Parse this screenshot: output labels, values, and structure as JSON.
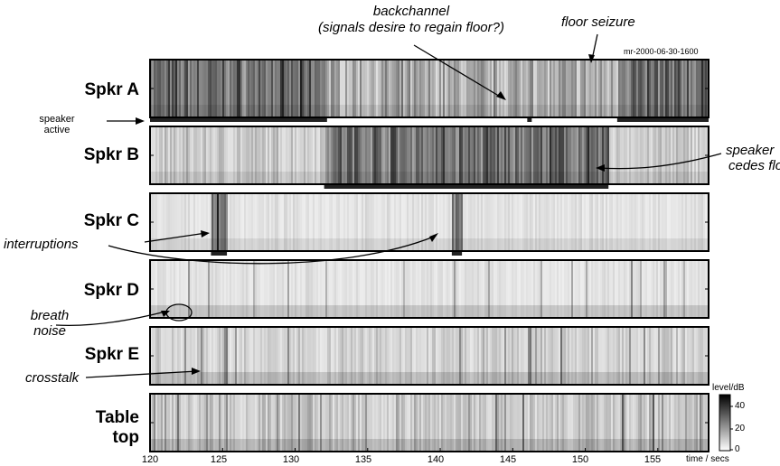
{
  "figure": {
    "recording_id": "mr-2000-06-30-1600",
    "axis_unit": "time / secs",
    "x_ticks": [
      "120",
      "125",
      "130",
      "135",
      "140",
      "145",
      "150",
      "155"
    ],
    "x_range": [
      120,
      158.5
    ]
  },
  "channels": [
    {
      "label": "Spkr A",
      "active_segments": [
        [
          120,
          132.2
        ],
        [
          146.0,
          146.3
        ],
        [
          152.2,
          158.5
        ]
      ],
      "intensity": "high"
    },
    {
      "label": "Spkr B",
      "active_segments": [
        [
          132.0,
          151.6
        ]
      ],
      "intensity": "medium"
    },
    {
      "label": "Spkr C",
      "active_segments": [
        [
          124.2,
          125.3
        ],
        [
          140.8,
          141.5
        ]
      ],
      "intensity": "low"
    },
    {
      "label": "Spkr D",
      "active_segments": [],
      "intensity": "low"
    },
    {
      "label": "Spkr E",
      "active_segments": [],
      "intensity": "medium-low"
    },
    {
      "label_line1": "Table",
      "label_line2": "top",
      "active_segments": [],
      "intensity": "medium"
    }
  ],
  "annotations": {
    "speaker_active_line1": "speaker",
    "speaker_active_line2": "active",
    "backchannel_line1": "backchannel",
    "backchannel_line2": "(signals desire to regain floor?)",
    "floor_seizure": "floor seizure",
    "speaker_cedes_line1": "speaker",
    "speaker_cedes_line2": "cedes floor",
    "interruptions": "interruptions",
    "breath_line1": "breath",
    "breath_line2": "noise",
    "crosstalk": "crosstalk"
  },
  "colorbar": {
    "title": "level/dB",
    "ticks": [
      "40",
      "20",
      "0"
    ],
    "range": [
      0,
      48
    ]
  }
}
